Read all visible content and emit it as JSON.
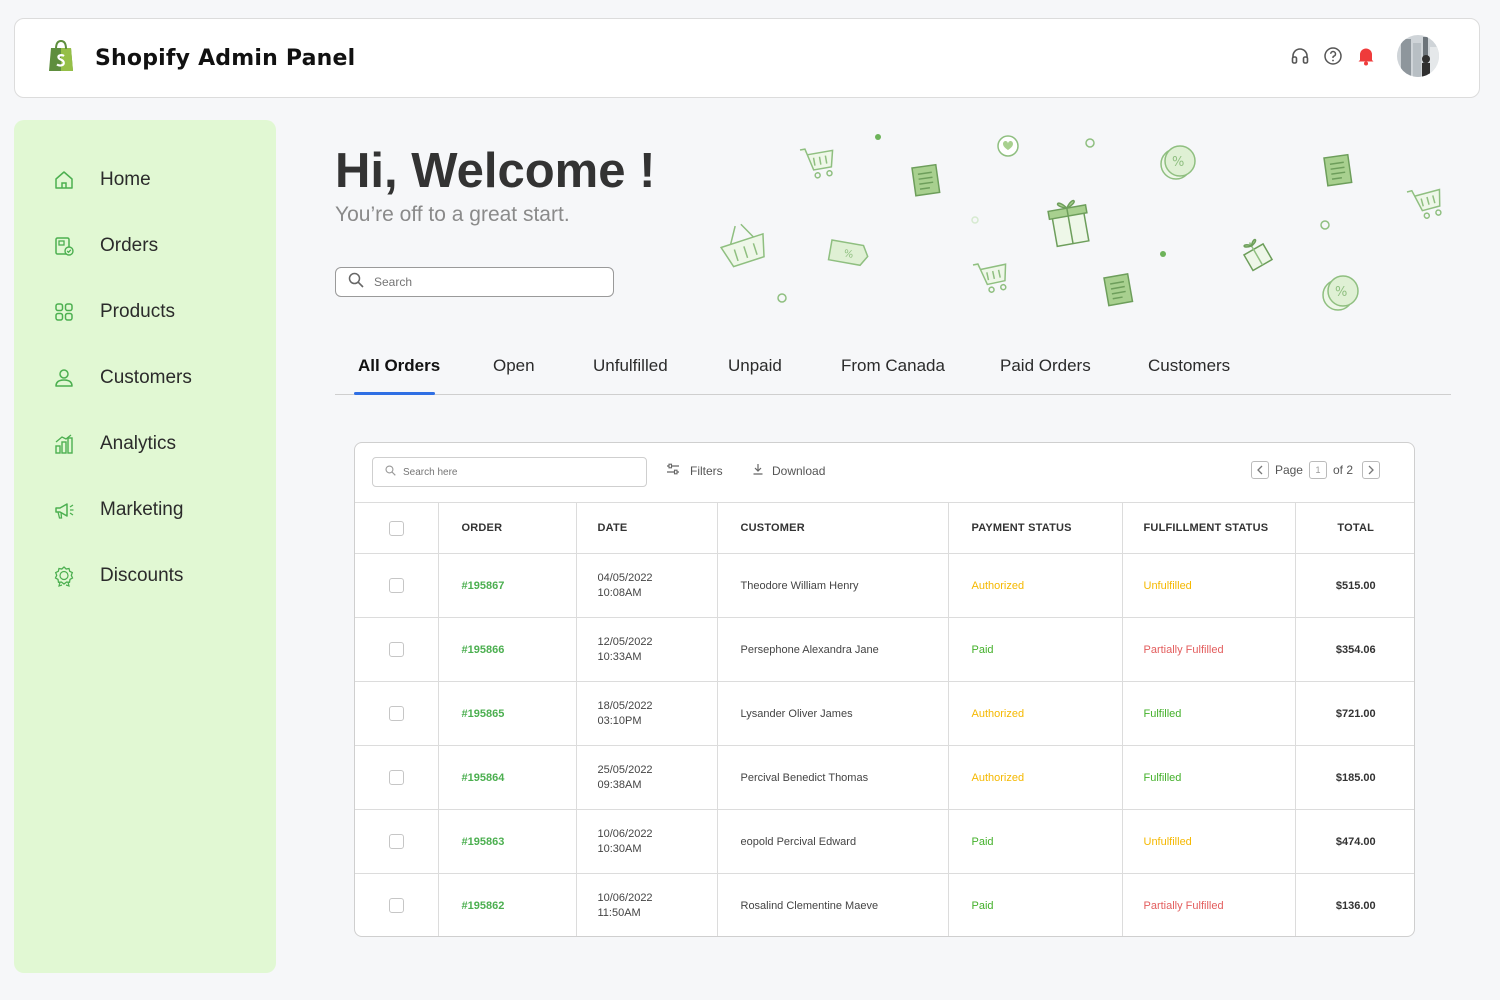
{
  "app": {
    "title": "Shopify Admin Panel"
  },
  "colors": {
    "accent_green": "#4caf50",
    "sidebar_bg": "#e1f8d3",
    "tab_underline": "#2f6fe4",
    "warning": "#f5b800",
    "danger": "#e35d5d",
    "success": "#43b02a",
    "bell": "#ef3b3b"
  },
  "header": {
    "icons": [
      "headset-icon",
      "help-icon",
      "bell-icon"
    ]
  },
  "sidebar": {
    "items": [
      {
        "label": "Home",
        "icon": "home-icon"
      },
      {
        "label": "Orders",
        "icon": "orders-icon"
      },
      {
        "label": "Products",
        "icon": "products-icon"
      },
      {
        "label": "Customers",
        "icon": "customers-icon"
      },
      {
        "label": "Analytics",
        "icon": "analytics-icon"
      },
      {
        "label": "Marketing",
        "icon": "marketing-icon"
      },
      {
        "label": "Discounts",
        "icon": "discounts-icon"
      }
    ]
  },
  "hero": {
    "title": "Hi, Welcome !",
    "subtitle": "You’re off to a great start.",
    "search_placeholder": "Search"
  },
  "tabs": [
    {
      "label": "All Orders",
      "active": true
    },
    {
      "label": "Open"
    },
    {
      "label": "Unfulfilled"
    },
    {
      "label": "Unpaid"
    },
    {
      "label": "From Canada"
    },
    {
      "label": "Paid Orders"
    },
    {
      "label": "Customers"
    }
  ],
  "table": {
    "search_placeholder": "Search here",
    "filters_label": "Filters",
    "download_label": "Download",
    "pager": {
      "page_label": "Page",
      "current": "1",
      "of_label": "of 2"
    },
    "columns": [
      "ORDER",
      "DATE",
      "CUSTOMER",
      "PAYMENT STATUS",
      "FULFILLMENT STATUS",
      "TOTAL"
    ],
    "rows": [
      {
        "order": "#195867",
        "date": "04/05/2022",
        "time": "10:08AM",
        "customer": "Theodore William Henry",
        "payment": "Authorized",
        "fulfillment": "Unfulfilled",
        "total": "$515.00"
      },
      {
        "order": "#195866",
        "date": "12/05/2022",
        "time": "10:33AM",
        "customer": "Persephone Alexandra Jane",
        "payment": "Paid",
        "fulfillment": "Partially Fulfilled",
        "total": "$354.06"
      },
      {
        "order": "#195865",
        "date": "18/05/2022",
        "time": "03:10PM",
        "customer": "Lysander Oliver James",
        "payment": "Authorized",
        "fulfillment": "Fulfilled",
        "total": "$721.00"
      },
      {
        "order": "#195864",
        "date": "25/05/2022",
        "time": "09:38AM",
        "customer": "Percival Benedict Thomas",
        "payment": "Authorized",
        "fulfillment": "Fulfilled",
        "total": "$185.00"
      },
      {
        "order": "#195863",
        "date": "10/06/2022",
        "time": "10:30AM",
        "customer": "eopold Percival Edward",
        "payment": "Paid",
        "fulfillment": "Unfulfilled",
        "total": "$474.00"
      },
      {
        "order": "#195862",
        "date": "10/06/2022",
        "time": "11:50AM",
        "customer": "Rosalind Clementine Maeve",
        "payment": "Paid",
        "fulfillment": "Partially Fulfilled",
        "total": "$136.00"
      }
    ]
  }
}
